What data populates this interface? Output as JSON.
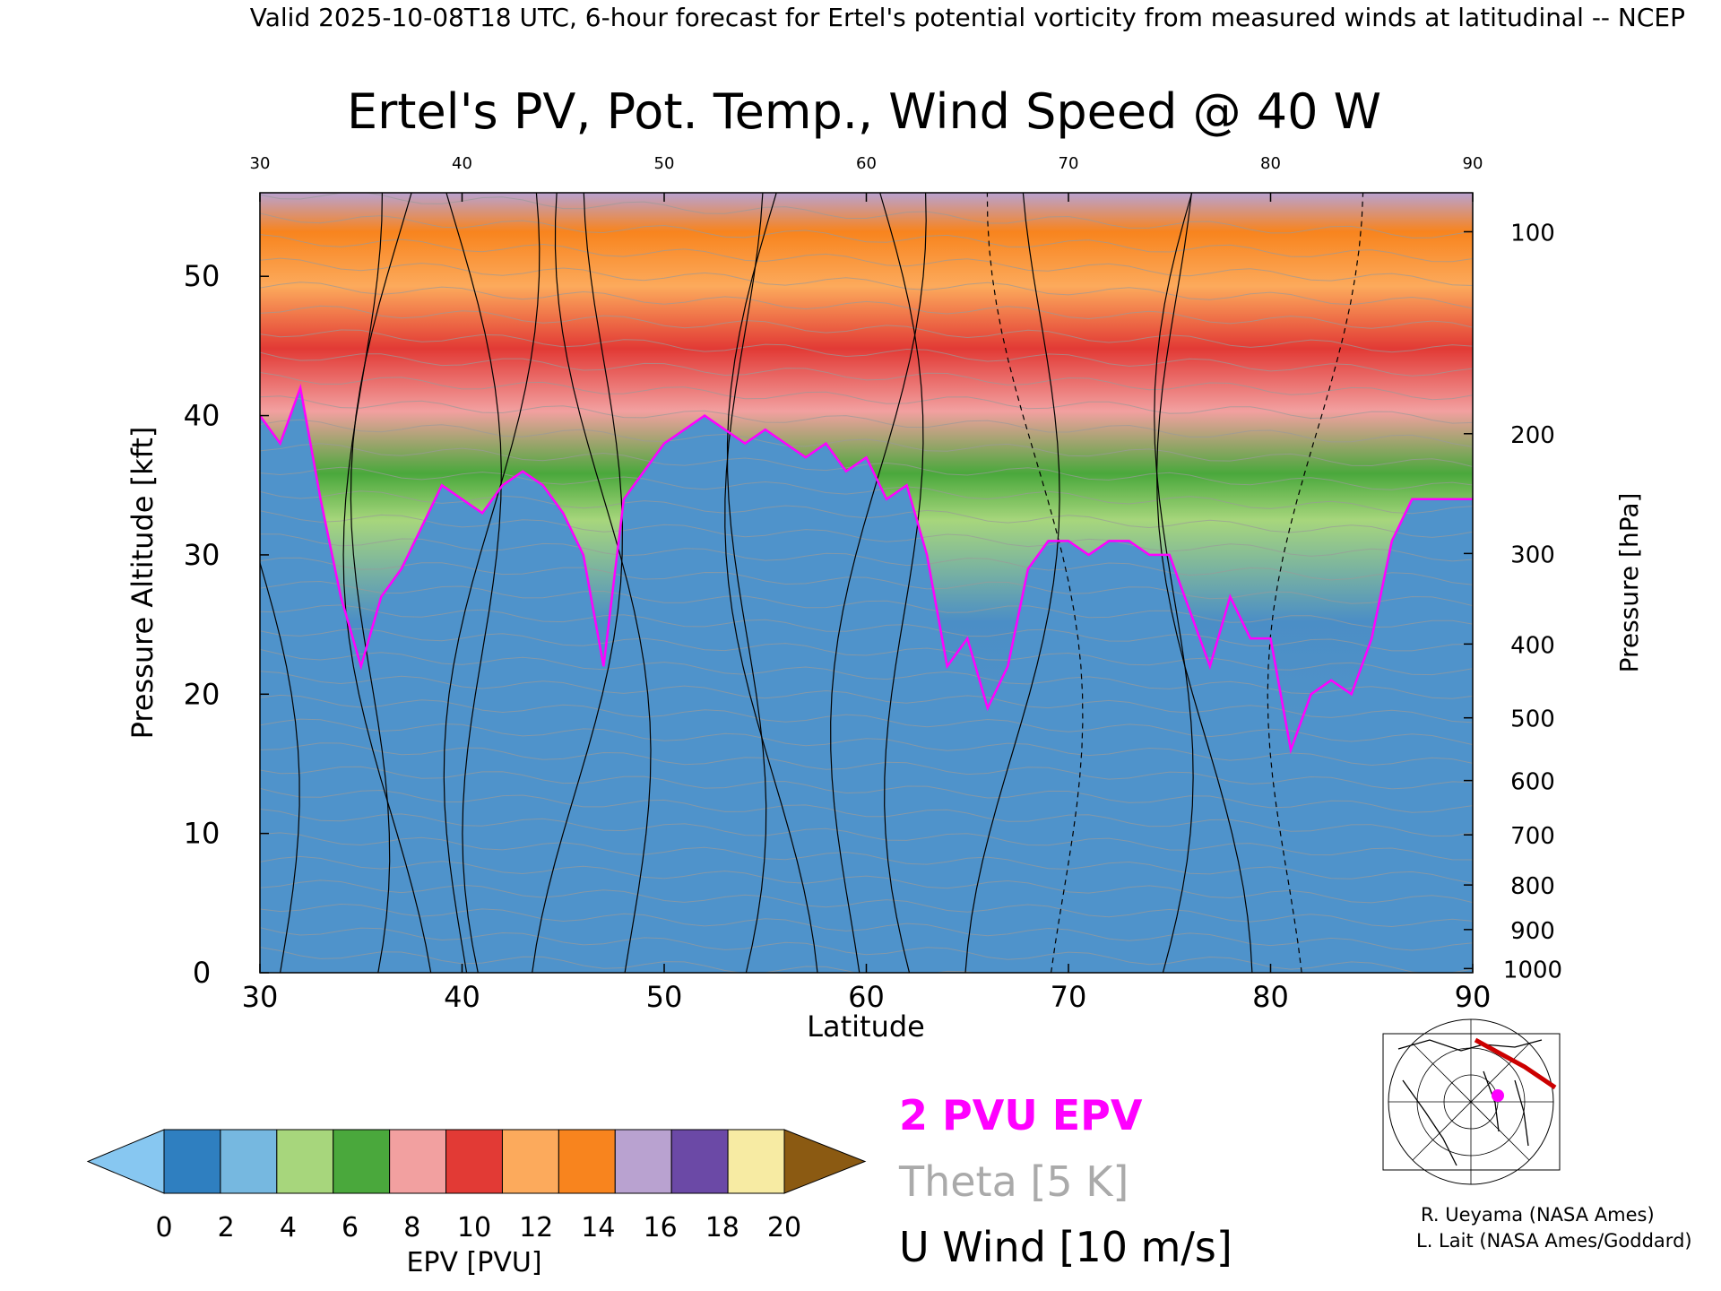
{
  "header": {
    "valid_line": "Valid 2025-10-08T18 UTC, 6-hour forecast for Ertel's potential vorticity from measured winds at latitudinal -- NCEP"
  },
  "chart_data": {
    "type": "heatmap",
    "title": "Ertel's PV, Pot. Temp., Wind Speed @ 40 W",
    "xlabel": "Latitude",
    "ylabel_left": "Pressure Altitude [kft]",
    "ylabel_right": "Pressure [hPa]",
    "xlim": [
      30,
      90
    ],
    "ylim": [
      0,
      56
    ],
    "x_ticks": [
      "30",
      "40",
      "50",
      "60",
      "70",
      "80",
      "90"
    ],
    "top_ticks": [
      "30",
      "40",
      "50",
      "60",
      "70",
      "80",
      "90"
    ],
    "y_ticks": [
      "0",
      "10",
      "20",
      "30",
      "40",
      "50"
    ],
    "pressure_ticks": [
      {
        "label": "100",
        "kft": 53.2
      },
      {
        "label": "200",
        "kft": 38.7
      },
      {
        "label": "300",
        "kft": 30.1
      },
      {
        "label": "400",
        "kft": 23.6
      },
      {
        "label": "500",
        "kft": 18.3
      },
      {
        "label": "600",
        "kft": 13.8
      },
      {
        "label": "700",
        "kft": 9.9
      },
      {
        "label": "800",
        "kft": 6.3
      },
      {
        "label": "900",
        "kft": 3.1
      },
      {
        "label": "1000",
        "kft": 0.3
      }
    ],
    "tropopause_2pvu_kft": [
      [
        30,
        40
      ],
      [
        31,
        38
      ],
      [
        32,
        42
      ],
      [
        33,
        34
      ],
      [
        34,
        27
      ],
      [
        35,
        22
      ],
      [
        36,
        27
      ],
      [
        37,
        29
      ],
      [
        38,
        32
      ],
      [
        39,
        35
      ],
      [
        40,
        34
      ],
      [
        41,
        33
      ],
      [
        42,
        35
      ],
      [
        43,
        36
      ],
      [
        44,
        35
      ],
      [
        45,
        33
      ],
      [
        46,
        30
      ],
      [
        47,
        22
      ],
      [
        48,
        34
      ],
      [
        49,
        36
      ],
      [
        50,
        38
      ],
      [
        51,
        39
      ],
      [
        52,
        40
      ],
      [
        53,
        39
      ],
      [
        54,
        38
      ],
      [
        55,
        39
      ],
      [
        56,
        38
      ],
      [
        57,
        37
      ],
      [
        58,
        38
      ],
      [
        59,
        36
      ],
      [
        60,
        37
      ],
      [
        61,
        34
      ],
      [
        62,
        35
      ],
      [
        63,
        30
      ],
      [
        64,
        22
      ],
      [
        65,
        24
      ],
      [
        66,
        19
      ],
      [
        67,
        22
      ],
      [
        68,
        29
      ],
      [
        69,
        31
      ],
      [
        70,
        31
      ],
      [
        71,
        30
      ],
      [
        72,
        31
      ],
      [
        73,
        31
      ],
      [
        74,
        30
      ],
      [
        75,
        30
      ],
      [
        76,
        26
      ],
      [
        77,
        22
      ],
      [
        78,
        27
      ],
      [
        79,
        24
      ],
      [
        80,
        24
      ],
      [
        81,
        16
      ],
      [
        82,
        20
      ],
      [
        83,
        21
      ],
      [
        84,
        20
      ],
      [
        85,
        24
      ],
      [
        86,
        31
      ],
      [
        87,
        34
      ],
      [
        88,
        34
      ],
      [
        89,
        34
      ],
      [
        90,
        34
      ]
    ],
    "colorbar": {
      "label": "EPV [PVU]",
      "ticks": [
        "0",
        "2",
        "4",
        "6",
        "8",
        "10",
        "12",
        "14",
        "16",
        "18",
        "20"
      ],
      "colors": [
        "#2f7fc0",
        "#76b8e0",
        "#a7d67c",
        "#4aa83c",
        "#f2a0a0",
        "#e23a35",
        "#fcaa5c",
        "#f8841e",
        "#b9a2d0",
        "#6b49a6",
        "#f7eba3"
      ],
      "under_color": "#87c7f1",
      "over_color": "#8b5a12"
    },
    "legend": [
      {
        "label": "2 PVU EPV",
        "color": "#ff00ff"
      },
      {
        "label": "Theta [5 K]",
        "color": "#aaaaaa"
      },
      {
        "label": "U Wind [10 m/s]",
        "color": "#000000"
      }
    ]
  },
  "credits": {
    "line1": "R. Ueyama (NASA Ames)",
    "line2": "L. Lait (NASA Ames/Goddard)"
  }
}
